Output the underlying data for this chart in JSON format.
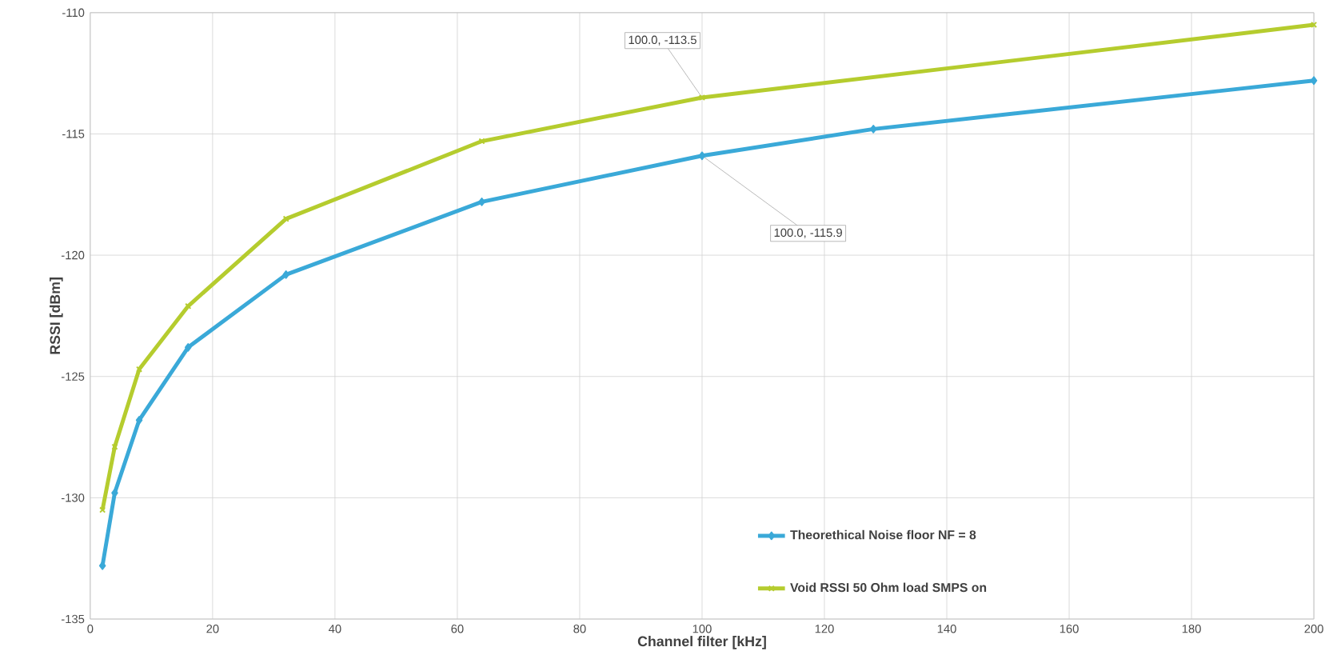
{
  "chart_data": {
    "type": "line",
    "xlabel": "Channel filter [kHz]",
    "ylabel": "RSSI [dBm]",
    "xlim": [
      0,
      200
    ],
    "xticks": [
      0,
      20,
      40,
      60,
      80,
      100,
      120,
      140,
      160,
      180,
      200
    ],
    "ylim": [
      -135,
      -110
    ],
    "yticks": [
      -135,
      -130,
      -125,
      -120,
      -115,
      -110
    ],
    "grid": true,
    "legend": "bottom right",
    "line_style": "solid",
    "series": [
      {
        "name": "Theorethical Noise floor NF = 8",
        "color": "#3aa9d8",
        "marker": "diamond",
        "x": [
          2,
          4,
          8,
          16,
          32,
          64,
          100,
          128,
          200
        ],
        "values": [
          -132.8,
          -129.8,
          -126.8,
          -123.8,
          -120.8,
          -117.8,
          -115.9,
          -114.8,
          -112.8
        ]
      },
      {
        "name": "Void RSSI  50 Ohm load SMPS on",
        "color": "#b5cc2e",
        "marker": "cross",
        "x": [
          2,
          4,
          8,
          16,
          32,
          64,
          100,
          200
        ],
        "values": [
          -130.5,
          -127.9,
          -124.7,
          -122.1,
          -118.5,
          -115.3,
          -113.5,
          -110.5
        ]
      }
    ],
    "annotations": [
      {
        "text": "100.0, -113.5",
        "x": 100,
        "y": -113.5
      },
      {
        "text": "100.0, -115.9",
        "x": 100,
        "y": -115.9
      }
    ]
  }
}
